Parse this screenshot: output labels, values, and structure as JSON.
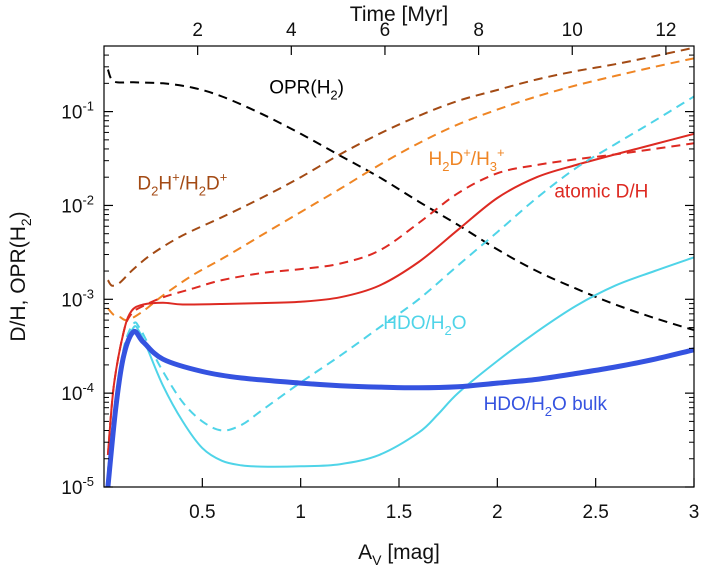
{
  "chart_data": {
    "type": "line",
    "title": "",
    "x_bottom": {
      "label_main": "A",
      "label_sub": "V",
      "label_rest": " [mag]",
      "range": [
        0.0,
        3.0
      ],
      "ticks": [
        "0.5",
        "1",
        "1.5",
        "2",
        "2.5",
        "3"
      ],
      "tick_values": [
        0.5,
        1.0,
        1.5,
        2.0,
        2.5,
        3.0
      ]
    },
    "x_top": {
      "label": "Time [Myr]",
      "range": [
        0.0,
        12.6
      ],
      "ticks": [
        "2",
        "4",
        "6",
        "8",
        "10",
        "12"
      ],
      "tick_values": [
        2,
        4,
        6,
        8,
        10,
        12
      ]
    },
    "y": {
      "label_parts": [
        "D/H, OPR(H",
        "2",
        ")"
      ],
      "scale": "log",
      "range": [
        1e-05,
        0.5
      ],
      "tick_values": [
        1e-05,
        0.0001,
        0.001,
        0.01,
        0.1
      ],
      "tick_base": "10",
      "tick_exps": [
        "-5",
        "-4",
        "-3",
        "-2",
        "-1"
      ]
    },
    "series": [
      {
        "name": "OPR(H2)",
        "color": "#000000",
        "dash": "dashed",
        "width": 2,
        "points": [
          [
            0.02,
            0.28
          ],
          [
            0.05,
            0.21
          ],
          [
            0.15,
            0.205
          ],
          [
            0.3,
            0.2
          ],
          [
            0.45,
            0.18
          ],
          [
            0.6,
            0.145
          ],
          [
            0.8,
            0.095
          ],
          [
            1.0,
            0.058
          ],
          [
            1.2,
            0.034
          ],
          [
            1.4,
            0.02
          ],
          [
            1.6,
            0.011
          ],
          [
            1.8,
            0.0062
          ],
          [
            2.0,
            0.0034
          ],
          [
            2.2,
            0.002
          ],
          [
            2.4,
            0.0013
          ],
          [
            2.6,
            0.00088
          ],
          [
            2.8,
            0.00063
          ],
          [
            3.0,
            0.00047
          ]
        ]
      },
      {
        "name": "D2H+/H2D+",
        "color": "#a34a14",
        "dash": "dashed",
        "width": 2,
        "points": [
          [
            0.02,
            0.0016
          ],
          [
            0.04,
            0.0014
          ],
          [
            0.08,
            0.0015
          ],
          [
            0.15,
            0.0021
          ],
          [
            0.25,
            0.0031
          ],
          [
            0.4,
            0.0048
          ],
          [
            0.6,
            0.0075
          ],
          [
            0.8,
            0.012
          ],
          [
            1.0,
            0.02
          ],
          [
            1.2,
            0.035
          ],
          [
            1.4,
            0.058
          ],
          [
            1.6,
            0.09
          ],
          [
            1.8,
            0.13
          ],
          [
            2.0,
            0.17
          ],
          [
            2.2,
            0.22
          ],
          [
            2.4,
            0.27
          ],
          [
            2.6,
            0.32
          ],
          [
            2.8,
            0.39
          ],
          [
            3.0,
            0.48
          ]
        ]
      },
      {
        "name": "H2D+/H3+",
        "color": "#ef8524",
        "dash": "dashed",
        "width": 2,
        "points": [
          [
            0.02,
            0.0008
          ],
          [
            0.05,
            0.00068
          ],
          [
            0.08,
            0.00065
          ],
          [
            0.12,
            0.0006
          ],
          [
            0.2,
            0.00075
          ],
          [
            0.3,
            0.0011
          ],
          [
            0.45,
            0.0018
          ],
          [
            0.6,
            0.0027
          ],
          [
            0.8,
            0.0048
          ],
          [
            1.0,
            0.0085
          ],
          [
            1.2,
            0.015
          ],
          [
            1.4,
            0.027
          ],
          [
            1.6,
            0.046
          ],
          [
            1.8,
            0.073
          ],
          [
            2.0,
            0.105
          ],
          [
            2.2,
            0.145
          ],
          [
            2.4,
            0.19
          ],
          [
            2.6,
            0.24
          ],
          [
            2.8,
            0.3
          ],
          [
            3.0,
            0.37
          ]
        ]
      },
      {
        "name": "atomic D/H (dashed)",
        "color": "#dd2a22",
        "dash": "dashed",
        "width": 2,
        "points": [
          [
            0.02,
            2.2e-05
          ],
          [
            0.05,
            0.00012
          ],
          [
            0.1,
            0.00045
          ],
          [
            0.14,
            0.0007
          ],
          [
            0.2,
            0.00085
          ],
          [
            0.3,
            0.00105
          ],
          [
            0.45,
            0.0013
          ],
          [
            0.6,
            0.0016
          ],
          [
            0.8,
            0.0019
          ],
          [
            1.0,
            0.0021
          ],
          [
            1.2,
            0.0024
          ],
          [
            1.4,
            0.0033
          ],
          [
            1.6,
            0.0065
          ],
          [
            1.8,
            0.0135
          ],
          [
            2.0,
            0.022
          ],
          [
            2.2,
            0.027
          ],
          [
            2.4,
            0.031
          ],
          [
            2.6,
            0.035
          ],
          [
            2.8,
            0.04
          ],
          [
            3.0,
            0.046
          ]
        ]
      },
      {
        "name": "atomic D/H",
        "color": "#dd2a22",
        "dash": "solid",
        "width": 2,
        "points": [
          [
            0.02,
            2.2e-05
          ],
          [
            0.05,
            0.00012
          ],
          [
            0.1,
            0.00045
          ],
          [
            0.14,
            0.00075
          ],
          [
            0.2,
            0.00088
          ],
          [
            0.3,
            0.00092
          ],
          [
            0.4,
            0.00088
          ],
          [
            0.6,
            0.00089
          ],
          [
            0.8,
            0.00091
          ],
          [
            1.0,
            0.00094
          ],
          [
            1.2,
            0.00105
          ],
          [
            1.4,
            0.0014
          ],
          [
            1.6,
            0.0025
          ],
          [
            1.8,
            0.0055
          ],
          [
            2.0,
            0.012
          ],
          [
            2.2,
            0.02
          ],
          [
            2.4,
            0.027
          ],
          [
            2.6,
            0.035
          ],
          [
            2.8,
            0.045
          ],
          [
            3.0,
            0.058
          ]
        ]
      },
      {
        "name": "HDO/H2O (dashed)",
        "color": "#4fd4e8",
        "dash": "dashed",
        "width": 2,
        "points": [
          [
            0.02,
            1.5e-05
          ],
          [
            0.06,
            7e-05
          ],
          [
            0.1,
            0.0003
          ],
          [
            0.15,
            0.00055
          ],
          [
            0.18,
            0.0005
          ],
          [
            0.22,
            0.00035
          ],
          [
            0.3,
            0.00017
          ],
          [
            0.4,
            8e-05
          ],
          [
            0.5,
            5e-05
          ],
          [
            0.6,
            4e-05
          ],
          [
            0.7,
            4.6e-05
          ],
          [
            0.8,
            6.5e-05
          ],
          [
            1.0,
            0.00013
          ],
          [
            1.2,
            0.00025
          ],
          [
            1.4,
            0.0005
          ],
          [
            1.6,
            0.001
          ],
          [
            1.8,
            0.0023
          ],
          [
            2.0,
            0.0052
          ],
          [
            2.2,
            0.012
          ],
          [
            2.4,
            0.025
          ],
          [
            2.6,
            0.045
          ],
          [
            2.8,
            0.08
          ],
          [
            3.0,
            0.145
          ]
        ]
      },
      {
        "name": "HDO/H2O",
        "color": "#4fd4e8",
        "dash": "solid",
        "width": 2,
        "points": [
          [
            0.02,
            1.2e-05
          ],
          [
            0.06,
            6e-05
          ],
          [
            0.1,
            0.00025
          ],
          [
            0.15,
            0.0005
          ],
          [
            0.18,
            0.00045
          ],
          [
            0.22,
            0.0003
          ],
          [
            0.3,
            0.00012
          ],
          [
            0.4,
            5e-05
          ],
          [
            0.5,
            2.6e-05
          ],
          [
            0.6,
            1.9e-05
          ],
          [
            0.7,
            1.7e-05
          ],
          [
            0.8,
            1.65e-05
          ],
          [
            1.0,
            1.66e-05
          ],
          [
            1.2,
            1.75e-05
          ],
          [
            1.4,
            2.2e-05
          ],
          [
            1.6,
            3.8e-05
          ],
          [
            1.7,
            6e-05
          ],
          [
            1.8,
            0.0001
          ],
          [
            2.0,
            0.00022
          ],
          [
            2.2,
            0.00045
          ],
          [
            2.4,
            0.00085
          ],
          [
            2.6,
            0.0014
          ],
          [
            2.8,
            0.002
          ],
          [
            3.0,
            0.0028
          ]
        ]
      },
      {
        "name": "HDO/H2O bulk",
        "color": "#3553e0",
        "dash": "solid",
        "width": 5,
        "points": [
          [
            0.02,
            1e-05
          ],
          [
            0.06,
            7e-05
          ],
          [
            0.1,
            0.00025
          ],
          [
            0.15,
            0.00045
          ],
          [
            0.2,
            0.00035
          ],
          [
            0.3,
            0.00023
          ],
          [
            0.5,
            0.00017
          ],
          [
            0.7,
            0.000145
          ],
          [
            1.0,
            0.000128
          ],
          [
            1.2,
            0.00012
          ],
          [
            1.4,
            0.000116
          ],
          [
            1.6,
            0.000114
          ],
          [
            1.8,
            0.000117
          ],
          [
            2.0,
            0.000128
          ],
          [
            2.2,
            0.00014
          ],
          [
            2.4,
            0.000162
          ],
          [
            2.6,
            0.00019
          ],
          [
            2.8,
            0.00023
          ],
          [
            3.0,
            0.00029
          ]
        ]
      }
    ],
    "annotations": [
      {
        "label": "opr",
        "parts": [
          "OPR(H",
          "_2",
          ")"
        ],
        "color": "#000000",
        "at": [
          0.84,
          0.155
        ]
      },
      {
        "label": "d2h",
        "parts": [
          "D",
          "_2",
          "H",
          "^+",
          "/H",
          "_2",
          "D",
          "^+"
        ],
        "color": "#a34a14",
        "at": [
          0.17,
          0.0148
        ]
      },
      {
        "label": "h2d",
        "parts": [
          "H",
          "_2",
          "D",
          "^+",
          "/H",
          "_3",
          "^+"
        ],
        "color": "#ef8524",
        "at": [
          1.65,
          0.027
        ]
      },
      {
        "label": "atomic",
        "parts": [
          "atomic D/H"
        ],
        "color": "#dd2a22",
        "at": [
          2.29,
          0.0122
        ]
      },
      {
        "label": "hdo",
        "parts": [
          "HDO/H",
          "_2",
          "O"
        ],
        "color": "#4fd4e8",
        "at": [
          1.42,
          0.00048
        ]
      },
      {
        "label": "bulk",
        "parts": [
          "HDO/H",
          "_2",
          "O bulk"
        ],
        "color": "#3553e0",
        "at": [
          1.93,
          6.6e-05
        ]
      }
    ]
  }
}
